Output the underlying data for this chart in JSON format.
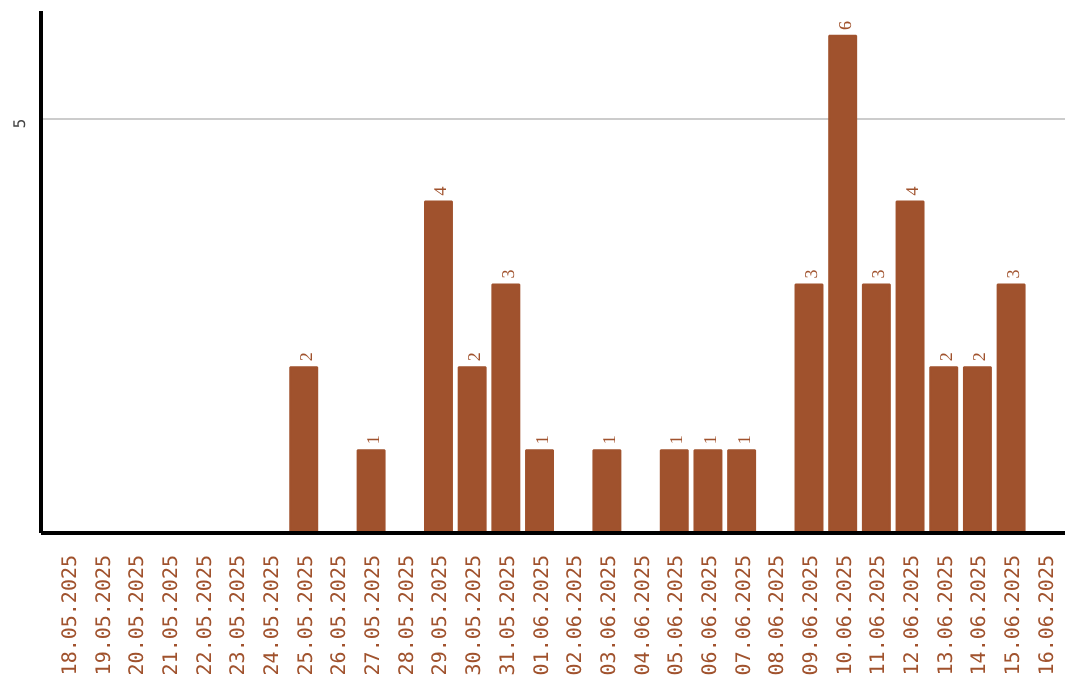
{
  "chart_data": {
    "type": "bar",
    "categories": [
      "18.05.2025",
      "19.05.2025",
      "20.05.2025",
      "21.05.2025",
      "22.05.2025",
      "23.05.2025",
      "24.05.2025",
      "25.05.2025",
      "26.05.2025",
      "27.05.2025",
      "28.05.2025",
      "29.05.2025",
      "30.05.2025",
      "31.05.2025",
      "01.06.2025",
      "02.06.2025",
      "03.06.2025",
      "04.06.2025",
      "05.06.2025",
      "06.06.2025",
      "07.06.2025",
      "08.06.2025",
      "09.06.2025",
      "10.06.2025",
      "11.06.2025",
      "12.06.2025",
      "13.06.2025",
      "14.06.2025",
      "15.06.2025",
      "16.06.2025"
    ],
    "values": [
      0,
      0,
      0,
      0,
      0,
      0,
      0,
      2,
      0,
      1,
      0,
      4,
      2,
      3,
      1,
      0,
      1,
      0,
      1,
      1,
      1,
      0,
      3,
      6,
      3,
      4,
      2,
      2,
      3,
      0
    ],
    "value_labels": [
      null,
      null,
      null,
      null,
      null,
      null,
      null,
      "2",
      null,
      "1",
      null,
      "4",
      "2",
      "3",
      "1",
      null,
      "1",
      null,
      "1",
      "1",
      "1",
      null,
      "3",
      "6",
      "3",
      "4",
      "2",
      "2",
      "3",
      null
    ],
    "color": "#a0522d",
    "ylim": [
      0,
      6.3
    ],
    "yticks": [
      5
    ],
    "grid": "y"
  }
}
